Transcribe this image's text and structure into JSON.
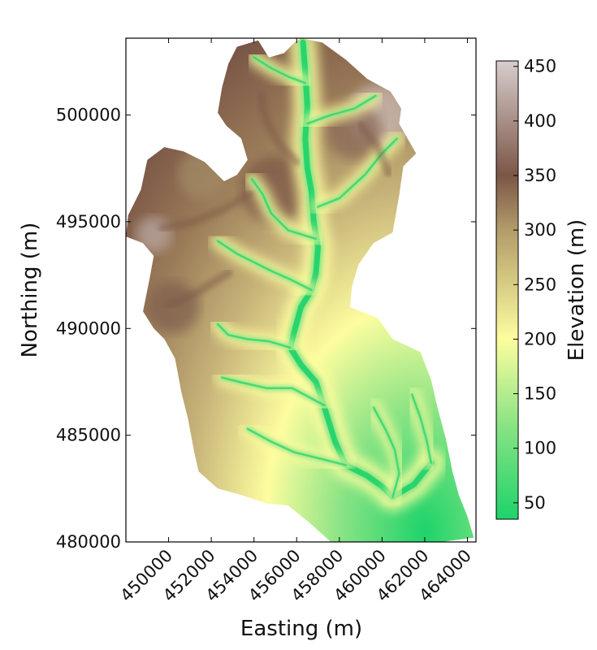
{
  "chart_data": {
    "type": "heatmap",
    "title": "",
    "xlabel": "Easting (m)",
    "ylabel": "Northing (m)",
    "xlim": [
      448000,
      464400
    ],
    "ylim": [
      480000,
      503600
    ],
    "xticks": [
      450000,
      452000,
      454000,
      456000,
      458000,
      460000,
      462000,
      464000
    ],
    "yticks": [
      480000,
      485000,
      490000,
      495000,
      500000
    ],
    "colorbar": {
      "label": "Elevation (m)",
      "ticks": [
        50,
        100,
        150,
        200,
        250,
        300,
        350,
        400,
        450
      ],
      "range": [
        35,
        455
      ],
      "colormap": [
        {
          "v": 35,
          "color": "#1dd36a"
        },
        {
          "v": 120,
          "color": "#88e384"
        },
        {
          "v": 200,
          "color": "#fdfd9f"
        },
        {
          "v": 300,
          "color": "#b29c6a"
        },
        {
          "v": 350,
          "color": "#7b5647"
        },
        {
          "v": 455,
          "color": "#d8cdcd"
        }
      ]
    },
    "outline": [
      [
        456200,
        503600
      ],
      [
        457200,
        503400
      ],
      [
        458300,
        502600
      ],
      [
        459300,
        501700
      ],
      [
        460400,
        501100
      ],
      [
        460900,
        500300
      ],
      [
        460800,
        499600
      ],
      [
        461600,
        498200
      ],
      [
        461000,
        497600
      ],
      [
        460800,
        496200
      ],
      [
        460500,
        494500
      ],
      [
        459600,
        494000
      ],
      [
        458900,
        493000
      ],
      [
        458600,
        492000
      ],
      [
        458500,
        491000
      ],
      [
        459800,
        490500
      ],
      [
        460500,
        489500
      ],
      [
        461800,
        488900
      ],
      [
        462300,
        487600
      ],
      [
        462600,
        486300
      ],
      [
        463000,
        484800
      ],
      [
        463300,
        483300
      ],
      [
        463600,
        482200
      ],
      [
        464000,
        481200
      ],
      [
        464300,
        480200
      ],
      [
        462800,
        480000
      ],
      [
        460200,
        480000
      ],
      [
        457600,
        480000
      ],
      [
        456600,
        480900
      ],
      [
        455600,
        481700
      ],
      [
        454600,
        481800
      ],
      [
        453400,
        482200
      ],
      [
        452300,
        482500
      ],
      [
        451400,
        483300
      ],
      [
        451200,
        484200
      ],
      [
        450900,
        485800
      ],
      [
        450600,
        487000
      ],
      [
        450300,
        488600
      ],
      [
        449800,
        489500
      ],
      [
        449300,
        490000
      ],
      [
        448800,
        490800
      ],
      [
        449100,
        492300
      ],
      [
        449300,
        493400
      ],
      [
        448800,
        494000
      ],
      [
        448000,
        494300
      ],
      [
        448100,
        495300
      ],
      [
        448700,
        496500
      ],
      [
        449000,
        497900
      ],
      [
        449800,
        498500
      ],
      [
        450700,
        498300
      ],
      [
        451700,
        497800
      ],
      [
        452600,
        496900
      ],
      [
        453200,
        497200
      ],
      [
        453700,
        497900
      ],
      [
        453400,
        498900
      ],
      [
        452700,
        499500
      ],
      [
        452300,
        500100
      ],
      [
        452500,
        501300
      ],
      [
        452800,
        502400
      ],
      [
        453200,
        503200
      ],
      [
        454200,
        503500
      ],
      [
        454700,
        502700
      ],
      [
        455400,
        502900
      ],
      [
        455900,
        503400
      ]
    ],
    "valleys": [
      [
        [
          462300,
          483700
        ],
        [
          461500,
          482700
        ],
        [
          460500,
          482100
        ],
        [
          460000,
          482600
        ],
        [
          459300,
          483100
        ],
        [
          458300,
          483600
        ],
        [
          457800,
          484700
        ],
        [
          457300,
          486300
        ],
        [
          456900,
          487500
        ],
        [
          456200,
          488300
        ],
        [
          455700,
          489100
        ],
        [
          455900,
          489900
        ],
        [
          456200,
          491000
        ],
        [
          456700,
          491800
        ],
        [
          456900,
          492600
        ],
        [
          457000,
          493800
        ],
        [
          456800,
          495000
        ],
        [
          456700,
          496400
        ],
        [
          456500,
          497500
        ],
        [
          456400,
          498900
        ],
        [
          456500,
          500400
        ],
        [
          456400,
          502000
        ],
        [
          456300,
          503400
        ]
      ],
      [
        [
          457300,
          486400
        ],
        [
          455800,
          487200
        ],
        [
          454600,
          487200
        ],
        [
          453300,
          487500
        ],
        [
          452500,
          487700
        ]
      ],
      [
        [
          455700,
          489100
        ],
        [
          454700,
          489400
        ],
        [
          453700,
          489500
        ],
        [
          452800,
          489700
        ],
        [
          452300,
          490200
        ]
      ],
      [
        [
          456700,
          491800
        ],
        [
          455700,
          492300
        ],
        [
          454800,
          492700
        ],
        [
          454000,
          493100
        ],
        [
          453200,
          493500
        ],
        [
          452300,
          494100
        ]
      ],
      [
        [
          456900,
          494200
        ],
        [
          455600,
          494600
        ],
        [
          454800,
          495400
        ],
        [
          454400,
          496300
        ],
        [
          453900,
          497000
        ]
      ],
      [
        [
          457000,
          495700
        ],
        [
          458000,
          496100
        ],
        [
          459200,
          497200
        ],
        [
          460000,
          498200
        ],
        [
          460700,
          498900
        ]
      ],
      [
        [
          456500,
          499600
        ],
        [
          457600,
          500000
        ],
        [
          458700,
          500300
        ],
        [
          459700,
          500900
        ]
      ],
      [
        [
          458300,
          483600
        ],
        [
          457100,
          483900
        ],
        [
          455900,
          484200
        ],
        [
          454800,
          484700
        ],
        [
          453700,
          485300
        ]
      ],
      [
        [
          460500,
          482100
        ],
        [
          460800,
          483200
        ],
        [
          460600,
          484300
        ],
        [
          460200,
          485200
        ],
        [
          459600,
          486300
        ]
      ],
      [
        [
          462300,
          483700
        ],
        [
          462100,
          484700
        ],
        [
          461800,
          485800
        ],
        [
          461400,
          486900
        ]
      ],
      [
        [
          456400,
          501500
        ],
        [
          455600,
          501800
        ],
        [
          454800,
          502200
        ],
        [
          454000,
          502700
        ]
      ]
    ],
    "ridges": [
      [
        [
          456000,
          497800
        ],
        [
          455200,
          498600
        ],
        [
          454600,
          499700
        ],
        [
          454300,
          500900
        ]
      ],
      [
        [
          459000,
          499500
        ],
        [
          459800,
          498500
        ],
        [
          460300,
          497300
        ]
      ],
      [
        [
          453800,
          496300
        ],
        [
          452600,
          495600
        ],
        [
          451200,
          495000
        ],
        [
          449700,
          494700
        ]
      ],
      [
        [
          452800,
          492600
        ],
        [
          451200,
          491600
        ],
        [
          450000,
          491100
        ]
      ]
    ]
  }
}
